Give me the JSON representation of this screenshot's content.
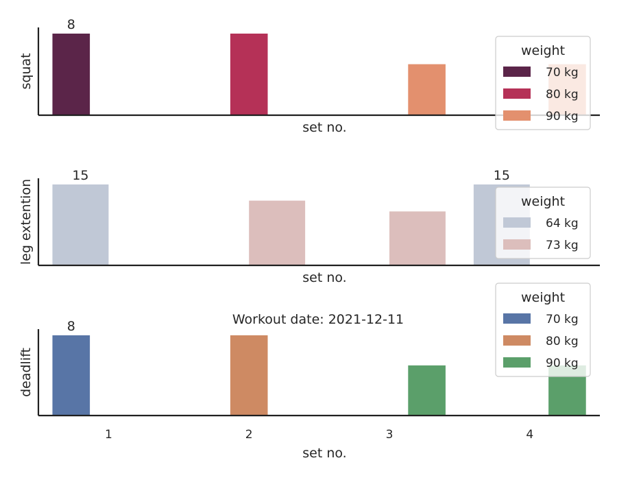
{
  "figure_title": "Workout date: 2021-12-11",
  "chart_data": [
    {
      "type": "bar",
      "ylabel": "squat",
      "xlabel": "set no.",
      "categories": [
        "1",
        "2",
        "3",
        "4"
      ],
      "show_ticklabels": false,
      "ylim": [
        0,
        8
      ],
      "legend": {
        "title": "weight",
        "position": "right",
        "entries": [
          "70 kg",
          "80 kg",
          "90 kg"
        ]
      },
      "bars": [
        {
          "set": "1",
          "hue": "70 kg",
          "value": 8,
          "label": "8"
        },
        {
          "set": "2",
          "hue": "80 kg",
          "value": 8
        },
        {
          "set": "3",
          "hue": "90 kg",
          "value": 5
        },
        {
          "set": "4",
          "hue": "90 kg",
          "value": 5
        }
      ],
      "colors": {
        "70 kg": "#5b2549",
        "80 kg": "#b53157",
        "90 kg": "#e3906e"
      }
    },
    {
      "type": "bar",
      "ylabel": "leg extention",
      "xlabel": "set no.",
      "categories": [
        "1",
        "2",
        "3",
        "4"
      ],
      "show_ticklabels": false,
      "ylim": [
        0,
        15
      ],
      "legend": {
        "title": "weight",
        "position": "right",
        "entries": [
          "64 kg",
          "73 kg"
        ]
      },
      "bars": [
        {
          "set": "1",
          "hue": "64 kg",
          "value": 15,
          "label": "15"
        },
        {
          "set": "2",
          "hue": "73 kg",
          "value": 12
        },
        {
          "set": "3",
          "hue": "73 kg",
          "value": 10
        },
        {
          "set": "4",
          "hue": "64 kg",
          "value": 15,
          "label": "15"
        }
      ],
      "colors": {
        "64 kg": "#c0c8d6",
        "73 kg": "#dcbebc"
      }
    },
    {
      "type": "bar",
      "ylabel": "deadlift",
      "xlabel": "set no.",
      "categories": [
        "1",
        "2",
        "3",
        "4"
      ],
      "show_ticklabels": true,
      "ylim": [
        0,
        8
      ],
      "legend": {
        "title": "weight",
        "position": "right",
        "entries": [
          "70 kg",
          "80 kg",
          "90 kg"
        ]
      },
      "bars": [
        {
          "set": "1",
          "hue": "70 kg",
          "value": 8,
          "label": "8"
        },
        {
          "set": "2",
          "hue": "80 kg",
          "value": 8
        },
        {
          "set": "3",
          "hue": "90 kg",
          "value": 5
        },
        {
          "set": "4",
          "hue": "90 kg",
          "value": 5
        }
      ],
      "colors": {
        "70 kg": "#5875a6",
        "80 kg": "#ce8a63",
        "90 kg": "#5b9f6a"
      }
    }
  ]
}
